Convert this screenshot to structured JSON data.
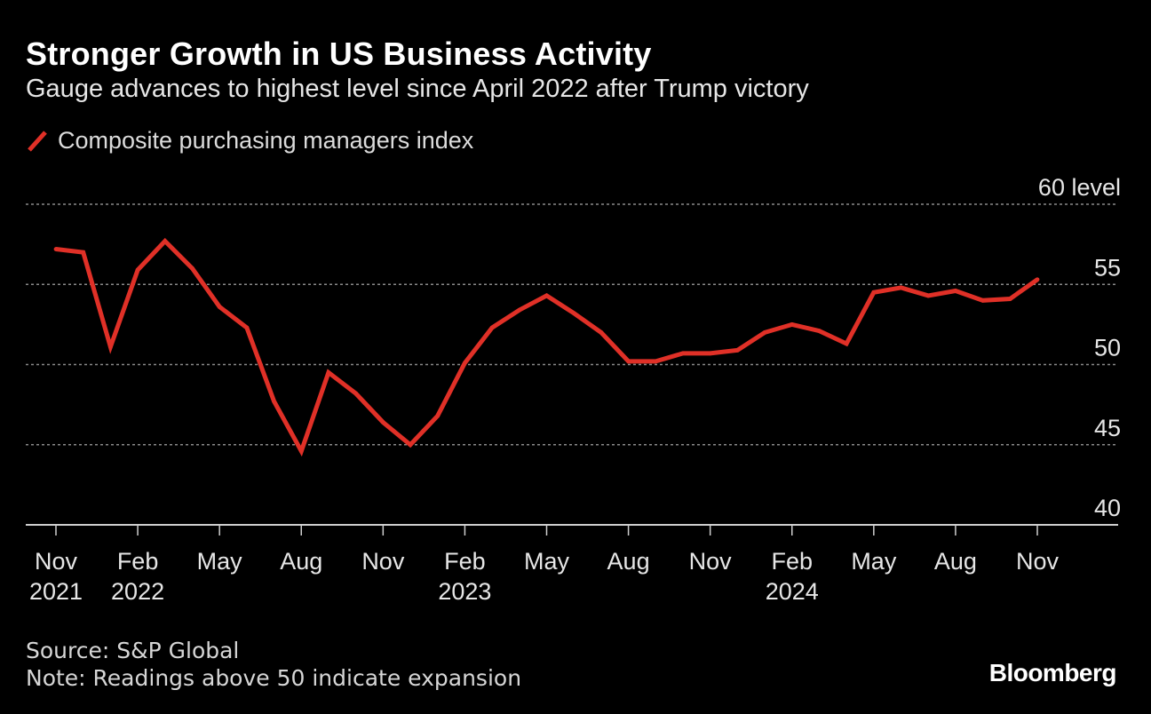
{
  "header": {
    "title": "Stronger Growth in US Business Activity",
    "subtitle": "Gauge advances to highest level since April 2022 after Trump victory"
  },
  "legend": {
    "label": "Composite purchasing managers index",
    "swatch_icon": "red-line-icon"
  },
  "footer": {
    "source": "Source: S&P Global",
    "note": "Note: Readings above 50 indicate expansion",
    "brand": "Bloomberg"
  },
  "colors": {
    "background": "#000000",
    "line": "#e03027",
    "grid": "#8a8a8a",
    "text": "#e6e6e6"
  },
  "chart_data": {
    "type": "line",
    "title": "Stronger Growth in US Business Activity",
    "subtitle": "Gauge advances to highest level since April 2022 after Trump victory",
    "xlabel": "",
    "ylabel": "level",
    "ylim": [
      40,
      60
    ],
    "yticks": [
      {
        "value": 60,
        "label": "60 level"
      },
      {
        "value": 55,
        "label": "55"
      },
      {
        "value": 50,
        "label": "50"
      },
      {
        "value": 45,
        "label": "45"
      },
      {
        "value": 40,
        "label": "40"
      }
    ],
    "xticks": [
      {
        "index": 0,
        "label": "Nov",
        "year": "2021"
      },
      {
        "index": 3,
        "label": "Feb",
        "year": "2022"
      },
      {
        "index": 6,
        "label": "May",
        "year": ""
      },
      {
        "index": 9,
        "label": "Aug",
        "year": ""
      },
      {
        "index": 12,
        "label": "Nov",
        "year": ""
      },
      {
        "index": 15,
        "label": "Feb",
        "year": "2023"
      },
      {
        "index": 18,
        "label": "May",
        "year": ""
      },
      {
        "index": 21,
        "label": "Aug",
        "year": ""
      },
      {
        "index": 24,
        "label": "Nov",
        "year": ""
      },
      {
        "index": 27,
        "label": "Feb",
        "year": "2024"
      },
      {
        "index": 30,
        "label": "May",
        "year": ""
      },
      {
        "index": 33,
        "label": "Aug",
        "year": ""
      },
      {
        "index": 36,
        "label": "Nov",
        "year": ""
      }
    ],
    "x_count": 37,
    "grid": true,
    "series": [
      {
        "name": "Composite purchasing managers index",
        "x": [
          "Nov 2021",
          "Dec 2021",
          "Jan 2022",
          "Feb 2022",
          "Mar 2022",
          "Apr 2022",
          "May 2022",
          "Jun 2022",
          "Jul 2022",
          "Aug 2022",
          "Sep 2022",
          "Oct 2022",
          "Nov 2022",
          "Dec 2022",
          "Jan 2023",
          "Feb 2023",
          "Mar 2023",
          "Apr 2023",
          "May 2023",
          "Jun 2023",
          "Jul 2023",
          "Aug 2023",
          "Sep 2023",
          "Oct 2023",
          "Nov 2023",
          "Dec 2023",
          "Jan 2024",
          "Feb 2024",
          "Mar 2024",
          "Apr 2024",
          "May 2024",
          "Jun 2024",
          "Jul 2024",
          "Aug 2024",
          "Sep 2024",
          "Oct 2024",
          "Nov 2024"
        ],
        "values": [
          57.2,
          57.0,
          51.1,
          55.9,
          57.7,
          56.0,
          53.6,
          52.3,
          47.7,
          44.6,
          49.5,
          48.2,
          46.4,
          45.0,
          46.8,
          50.1,
          52.3,
          53.4,
          54.3,
          53.2,
          52.0,
          50.2,
          50.2,
          50.7,
          50.7,
          50.9,
          52.0,
          52.5,
          52.1,
          51.3,
          54.5,
          54.8,
          54.3,
          54.6,
          54.0,
          54.1,
          55.3
        ]
      }
    ]
  }
}
